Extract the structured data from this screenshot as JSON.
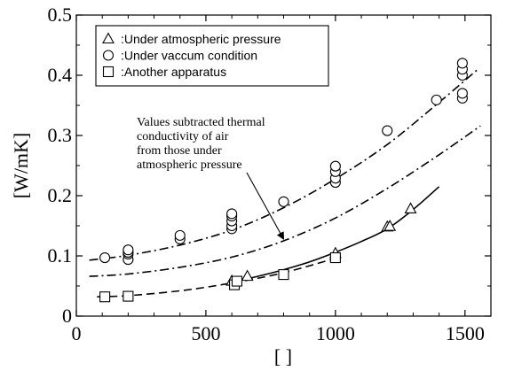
{
  "chart_data": {
    "type": "scatter",
    "xlabel": "[ ]",
    "ylabel": "[W/mK]",
    "xlim": [
      0,
      1600
    ],
    "ylim": [
      0,
      0.5
    ],
    "x_ticks": [
      0,
      500,
      1000,
      1500
    ],
    "y_ticks": [
      0,
      0.1,
      0.2,
      0.3,
      0.4,
      0.5
    ],
    "x_tick_labels": [
      "0",
      "500",
      "1000",
      "1500"
    ],
    "y_tick_labels": [
      "0",
      "0.1",
      "0.2",
      "0.3",
      "0.4",
      "0.5"
    ],
    "grid": false,
    "legend_position": "top-left",
    "series": [
      {
        "name": ":Under atmospheric pressure",
        "marker": "triangle",
        "points": [
          [
            600,
            0.058
          ],
          [
            660,
            0.066
          ],
          [
            1000,
            0.104
          ],
          [
            1200,
            0.148
          ],
          [
            1210,
            0.149
          ],
          [
            1290,
            0.178
          ]
        ]
      },
      {
        "name": ":Under vaccum condition",
        "marker": "circle",
        "points": [
          [
            110,
            0.097
          ],
          [
            200,
            0.094
          ],
          [
            200,
            0.103
          ],
          [
            200,
            0.106
          ],
          [
            200,
            0.11
          ],
          [
            400,
            0.128
          ],
          [
            400,
            0.134
          ],
          [
            600,
            0.145
          ],
          [
            600,
            0.15
          ],
          [
            600,
            0.158
          ],
          [
            600,
            0.166
          ],
          [
            600,
            0.17
          ],
          [
            800,
            0.19
          ],
          [
            1000,
            0.222
          ],
          [
            1000,
            0.229
          ],
          [
            1000,
            0.24
          ],
          [
            1000,
            0.249
          ],
          [
            1200,
            0.308
          ],
          [
            1390,
            0.359
          ],
          [
            1490,
            0.362
          ],
          [
            1490,
            0.37
          ],
          [
            1490,
            0.4
          ],
          [
            1490,
            0.41
          ],
          [
            1490,
            0.42
          ]
        ]
      },
      {
        "name": ":Another apparatus",
        "marker": "square",
        "points": [
          [
            110,
            0.032
          ],
          [
            200,
            0.033
          ],
          [
            610,
            0.052
          ],
          [
            620,
            0.058
          ],
          [
            800,
            0.069
          ],
          [
            1000,
            0.097
          ]
        ]
      }
    ],
    "fit_curves": [
      {
        "style": "dash-dot",
        "x": [
          50,
          200,
          400,
          600,
          800,
          1000,
          1200,
          1400,
          1550
        ],
        "y": [
          0.093,
          0.101,
          0.118,
          0.143,
          0.18,
          0.228,
          0.285,
          0.355,
          0.41
        ]
      },
      {
        "style": "dash-dot",
        "x": [
          50,
          200,
          400,
          600,
          800,
          1000,
          1200,
          1400,
          1560
        ],
        "y": [
          0.066,
          0.07,
          0.081,
          0.098,
          0.125,
          0.163,
          0.212,
          0.268,
          0.316
        ]
      },
      {
        "style": "solid",
        "x": [
          600,
          700,
          800,
          900,
          1000,
          1100,
          1200,
          1300,
          1400
        ],
        "y": [
          0.056,
          0.066,
          0.077,
          0.09,
          0.106,
          0.124,
          0.145,
          0.177,
          0.215
        ]
      },
      {
        "style": "dashed",
        "x": [
          80,
          200,
          400,
          600,
          800,
          1000
        ],
        "y": [
          0.032,
          0.034,
          0.042,
          0.055,
          0.072,
          0.096
        ]
      }
    ],
    "annotation": {
      "lines": [
        "Values subtracted thermal",
        "conductivity of air",
        "from those under",
        "atmospheric pressure"
      ],
      "arrow_to": [
        800,
        0.125
      ]
    }
  }
}
